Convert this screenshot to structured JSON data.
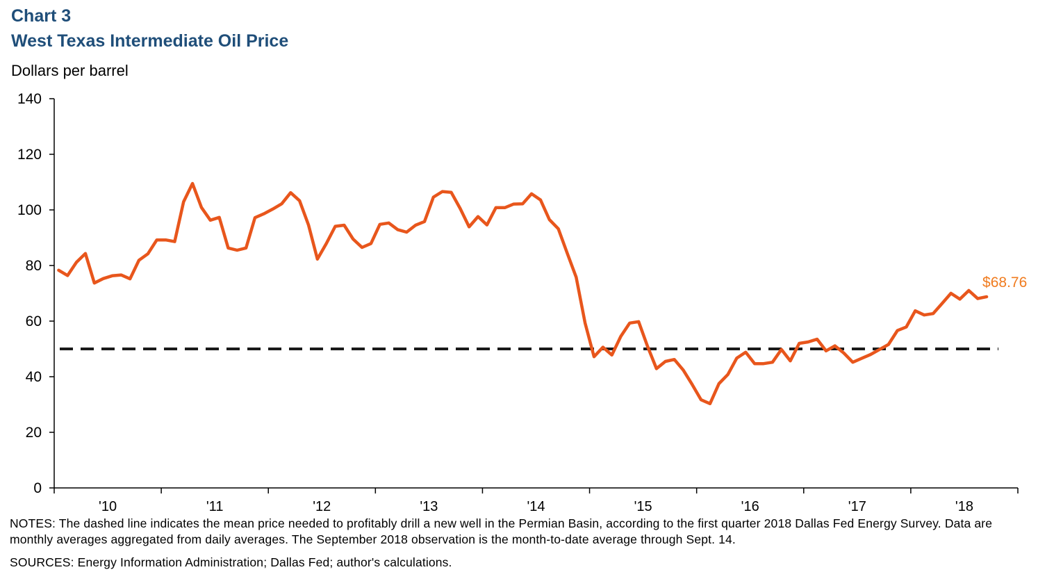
{
  "header": {
    "title": "Chart 3",
    "subtitle": "West Texas Intermediate Oil Price"
  },
  "colors": {
    "title": "#1f4e79",
    "series": "#e8561c",
    "annotation": "#f07b1e",
    "reference_line": "#1a1a1a",
    "axis": "#000000"
  },
  "footer": {
    "notes": "NOTES: The dashed line indicates the mean price needed to profitably drill a new well in the Permian Basin, according to the first quarter 2018 Dallas Fed Energy Survey. Data are monthly averages aggregated from daily averages. The September 2018 observation is the month-to-date average through Sept. 14.",
    "sources": "SOURCES: Energy Information Administration; Dallas Fed; author's calculations."
  },
  "chart_data": {
    "type": "line",
    "title": "West Texas Intermediate Oil Price",
    "ylabel": "Dollars per barrel",
    "xlabel": "",
    "ylim": [
      0,
      140
    ],
    "yticks": [
      0,
      20,
      40,
      60,
      80,
      100,
      120,
      140
    ],
    "xlim": [
      "2010-01",
      "2018-12"
    ],
    "xticks": [
      "'10",
      "'11",
      "'12",
      "'13",
      "'14",
      "'15",
      "'16",
      "'17",
      "'18"
    ],
    "grid": false,
    "legend": "none",
    "reference_lines": [
      {
        "y": 50,
        "style": "dashed"
      }
    ],
    "annotations": [
      {
        "text": "$68.76",
        "x": "2018-09",
        "y": 68.76
      }
    ],
    "series": [
      {
        "x": [
          "2010-01",
          "2010-02",
          "2010-03",
          "2010-04",
          "2010-05",
          "2010-06",
          "2010-07",
          "2010-08",
          "2010-09",
          "2010-10",
          "2010-11",
          "2010-12",
          "2011-01",
          "2011-02",
          "2011-03",
          "2011-04",
          "2011-05",
          "2011-06",
          "2011-07",
          "2011-08",
          "2011-09",
          "2011-10",
          "2011-11",
          "2011-12",
          "2012-01",
          "2012-02",
          "2012-03",
          "2012-04",
          "2012-05",
          "2012-06",
          "2012-07",
          "2012-08",
          "2012-09",
          "2012-10",
          "2012-11",
          "2012-12",
          "2013-01",
          "2013-02",
          "2013-03",
          "2013-04",
          "2013-05",
          "2013-06",
          "2013-07",
          "2013-08",
          "2013-09",
          "2013-10",
          "2013-11",
          "2013-12",
          "2014-01",
          "2014-02",
          "2014-03",
          "2014-04",
          "2014-05",
          "2014-06",
          "2014-07",
          "2014-08",
          "2014-09",
          "2014-10",
          "2014-11",
          "2014-12",
          "2015-01",
          "2015-02",
          "2015-03",
          "2015-04",
          "2015-05",
          "2015-06",
          "2015-07",
          "2015-08",
          "2015-09",
          "2015-10",
          "2015-11",
          "2015-12",
          "2016-01",
          "2016-02",
          "2016-03",
          "2016-04",
          "2016-05",
          "2016-06",
          "2016-07",
          "2016-08",
          "2016-09",
          "2016-10",
          "2016-11",
          "2016-12",
          "2017-01",
          "2017-02",
          "2017-03",
          "2017-04",
          "2017-05",
          "2017-06",
          "2017-07",
          "2017-08",
          "2017-09",
          "2017-10",
          "2017-11",
          "2017-12",
          "2018-01",
          "2018-02",
          "2018-03",
          "2018-04",
          "2018-05",
          "2018-06",
          "2018-07",
          "2018-08",
          "2018-09"
        ],
        "values": [
          78.3,
          76.4,
          81.2,
          84.3,
          73.7,
          75.3,
          76.3,
          76.6,
          75.2,
          81.9,
          84.2,
          89.2,
          89.2,
          88.6,
          102.9,
          109.5,
          100.9,
          96.3,
          97.3,
          86.3,
          85.5,
          86.3,
          97.2,
          98.6,
          100.3,
          102.2,
          106.2,
          103.3,
          94.6,
          82.3,
          87.9,
          94.1,
          94.5,
          89.5,
          86.5,
          87.9,
          94.8,
          95.3,
          92.9,
          92.0,
          94.5,
          95.8,
          104.6,
          106.6,
          106.3,
          100.5,
          93.9,
          97.6,
          94.6,
          100.8,
          100.8,
          102.1,
          102.2,
          105.8,
          103.6,
          96.5,
          93.2,
          84.4,
          75.8,
          59.3,
          47.2,
          50.6,
          47.8,
          54.5,
          59.3,
          59.8,
          50.9,
          42.9,
          45.5,
          46.2,
          42.4,
          37.2,
          31.7,
          30.3,
          37.5,
          40.8,
          46.7,
          48.8,
          44.7,
          44.7,
          45.2,
          49.8,
          45.7,
          52.0,
          52.5,
          53.5,
          49.3,
          51.1,
          48.5,
          45.2,
          46.6,
          48.0,
          49.8,
          51.6,
          56.6,
          57.9,
          63.7,
          62.2,
          62.7,
          66.3,
          70.0,
          67.9,
          71.0,
          68.1,
          68.76
        ]
      }
    ]
  }
}
